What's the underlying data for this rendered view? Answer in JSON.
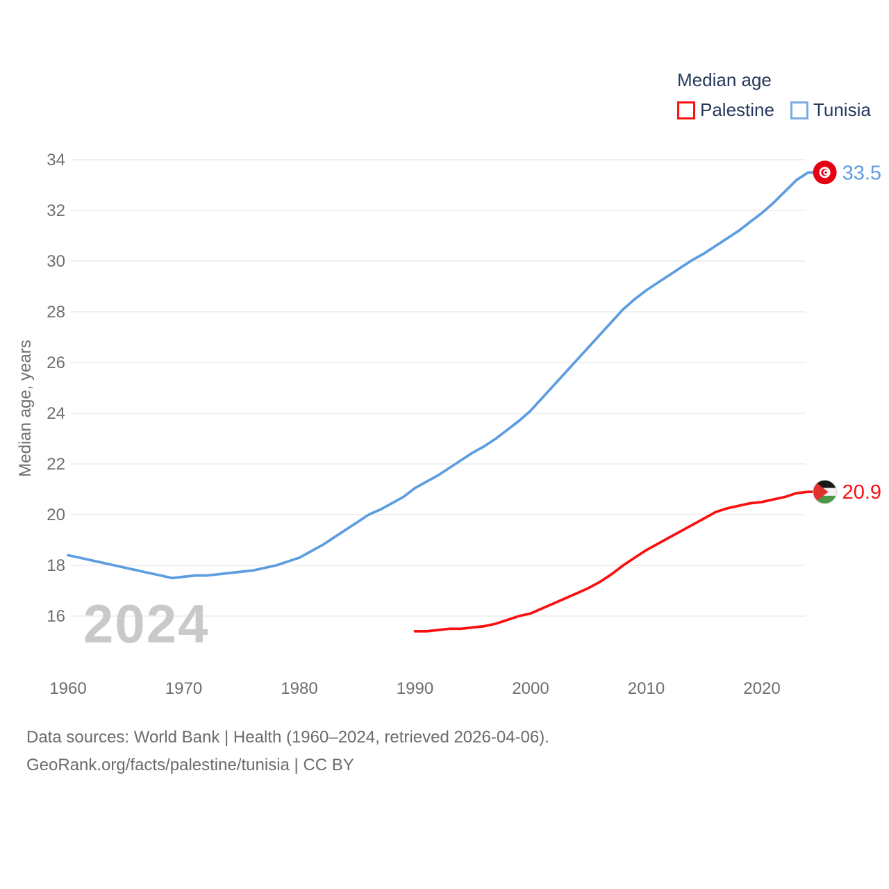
{
  "legend": {
    "title": "Median age",
    "items": [
      {
        "label": "Palestine",
        "swatch_color": "#fb1210"
      },
      {
        "label": "Tunisia",
        "swatch_color": "#79abe2"
      }
    ]
  },
  "watermark_year": "2024",
  "footer": {
    "line1": "Data sources: World Bank | Health (1960–2024, retrieved 2026-04-06).",
    "line2": "GeoRank.org/facts/palestine/tunisia | CC BY"
  },
  "colors": {
    "background": "#ffffff",
    "axis_text": "#6e6e6e",
    "grid": "#ececec",
    "legend_text": "#24395b",
    "watermark": "#c9c9c9"
  },
  "flag_colors": {
    "tunisia": {
      "base": "#e70013",
      "emblem": "#ffffff"
    },
    "palestine": {
      "black": "#191919",
      "white": "#f4f4f4",
      "green": "#4c9647",
      "red": "#e0312e"
    }
  },
  "chart_data": {
    "type": "line",
    "title": "Median age",
    "xlabel": "",
    "ylabel": "Median age, years",
    "ylim": [
      15,
      34.8
    ],
    "xlim": [
      1958,
      2029
    ],
    "grid": "horizontal-only",
    "legend_position": "top-right",
    "yticks": [
      34,
      32,
      30,
      28,
      26,
      24,
      22,
      20,
      18,
      16
    ],
    "xticks": [
      1960,
      1970,
      1980,
      1990,
      2000,
      2010,
      2020
    ],
    "series": [
      {
        "name": "Palestine",
        "color": "#fa0f0f",
        "flag": "palestine",
        "end_label": "20.9",
        "x": [
          1990,
          1991,
          1992,
          1993,
          1994,
          1995,
          1996,
          1997,
          1998,
          1999,
          2000,
          2001,
          2002,
          2003,
          2004,
          2005,
          2006,
          2007,
          2008,
          2009,
          2010,
          2011,
          2012,
          2013,
          2014,
          2015,
          2016,
          2017,
          2018,
          2019,
          2020,
          2021,
          2022,
          2023,
          2024
        ],
        "values": [
          15.4,
          15.4,
          15.45,
          15.5,
          15.5,
          15.55,
          15.6,
          15.7,
          15.85,
          16.0,
          16.1,
          16.3,
          16.5,
          16.7,
          16.9,
          17.1,
          17.35,
          17.65,
          18.0,
          18.3,
          18.6,
          18.85,
          19.1,
          19.35,
          19.6,
          19.85,
          20.1,
          20.25,
          20.35,
          20.45,
          20.5,
          20.6,
          20.7,
          20.85,
          20.9
        ]
      },
      {
        "name": "Tunisia",
        "color": "#5c9ce0",
        "flag": "tunisia",
        "end_label": "33.5",
        "x": [
          1960,
          1961,
          1962,
          1963,
          1964,
          1965,
          1966,
          1967,
          1968,
          1969,
          1970,
          1971,
          1972,
          1973,
          1974,
          1975,
          1976,
          1977,
          1978,
          1979,
          1980,
          1981,
          1982,
          1983,
          1984,
          1985,
          1986,
          1987,
          1988,
          1989,
          1990,
          1991,
          1992,
          1993,
          1994,
          1995,
          1996,
          1997,
          1998,
          1999,
          2000,
          2001,
          2002,
          2003,
          2004,
          2005,
          2006,
          2007,
          2008,
          2009,
          2010,
          2011,
          2012,
          2013,
          2014,
          2015,
          2016,
          2017,
          2018,
          2019,
          2020,
          2021,
          2022,
          2023,
          2024
        ],
        "values": [
          18.4,
          18.3,
          18.2,
          18.1,
          18.0,
          17.9,
          17.8,
          17.7,
          17.6,
          17.5,
          17.55,
          17.6,
          17.6,
          17.65,
          17.7,
          17.75,
          17.8,
          17.9,
          18.0,
          18.15,
          18.3,
          18.55,
          18.8,
          19.1,
          19.4,
          19.7,
          20.0,
          20.2,
          20.45,
          20.7,
          21.05,
          21.3,
          21.55,
          21.85,
          22.15,
          22.45,
          22.7,
          23.0,
          23.35,
          23.7,
          24.1,
          24.6,
          25.1,
          25.6,
          26.1,
          26.6,
          27.1,
          27.6,
          28.1,
          28.5,
          28.85,
          29.15,
          29.45,
          29.75,
          30.05,
          30.3,
          30.6,
          30.9,
          31.2,
          31.55,
          31.9,
          32.3,
          32.75,
          33.2,
          33.5
        ]
      }
    ]
  }
}
